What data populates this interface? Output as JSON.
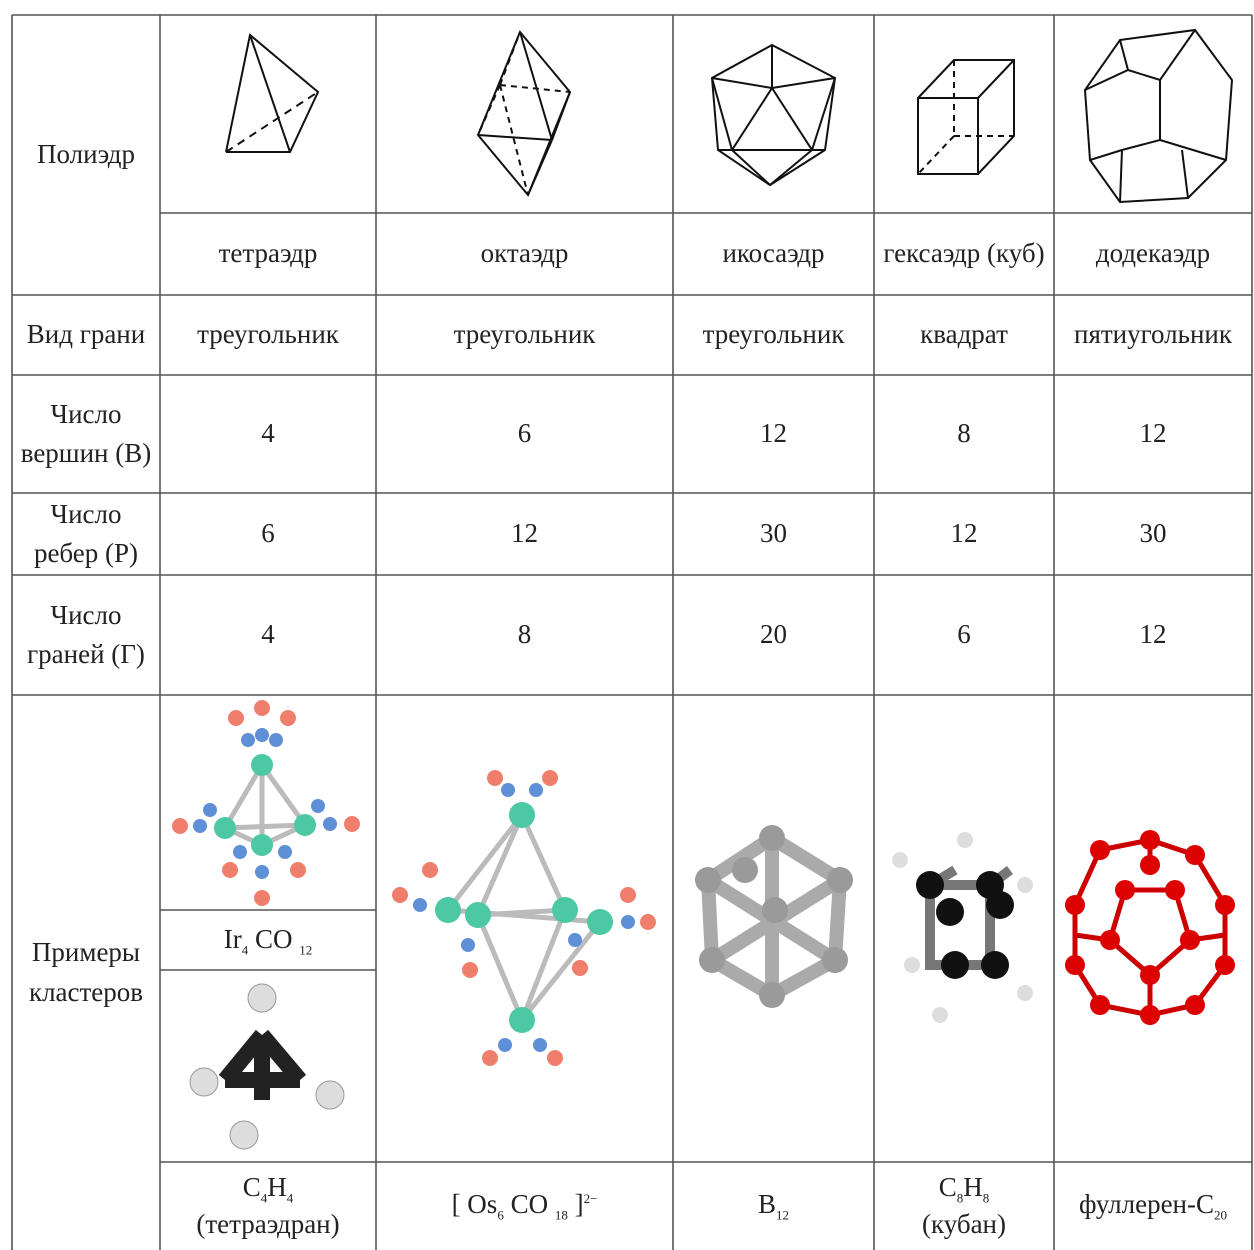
{
  "table": {
    "header": {
      "label": "Полиэдр",
      "names": [
        "тетраэдр",
        "октаэдр",
        "икосаэдр",
        "гексаэдр (куб)",
        "додекаэдр"
      ]
    },
    "rows": [
      {
        "label": "Вид грани",
        "cells": [
          "треугольник",
          "треугольник",
          "треугольник",
          "квадрат",
          "пятиугольник"
        ]
      },
      {
        "label": "Число вершин (В)",
        "cells": [
          "4",
          "6",
          "12",
          "8",
          "12"
        ]
      },
      {
        "label": "Число ребер (Р)",
        "cells": [
          "6",
          "12",
          "30",
          "12",
          "30"
        ]
      },
      {
        "label": "Число граней (Г)",
        "cells": [
          "4",
          "8",
          "20",
          "6",
          "12"
        ]
      }
    ],
    "examples": {
      "label": "Примеры кластеров",
      "extra": [
        {
          "text": "Ir"
        },
        {
          "sub": "4"
        },
        {
          "text": " CO "
        },
        {
          "sub": "12"
        }
      ],
      "cells": [
        {
          "formula": [
            {
              "text": "C"
            },
            {
              "sub": "4"
            },
            {
              "text": "H"
            },
            {
              "sub": "4"
            }
          ],
          "note": "(тетраэдран)"
        },
        {
          "formula": [
            {
              "text": "[ Os"
            },
            {
              "sub": "6"
            },
            {
              "text": " CO "
            },
            {
              "sub": "18"
            },
            {
              "text": " ]"
            },
            {
              "sup": "2−"
            }
          ]
        },
        {
          "formula": [
            {
              "text": "B"
            },
            {
              "sub": "12"
            }
          ]
        },
        {
          "formula": [
            {
              "text": "C"
            },
            {
              "sub": "8"
            },
            {
              "text": "H"
            },
            {
              "sub": "8"
            }
          ],
          "note": "(кубан)"
        },
        {
          "formula": [
            {
              "text": "фуллерен-C"
            },
            {
              "sub": "20"
            }
          ]
        }
      ]
    }
  }
}
